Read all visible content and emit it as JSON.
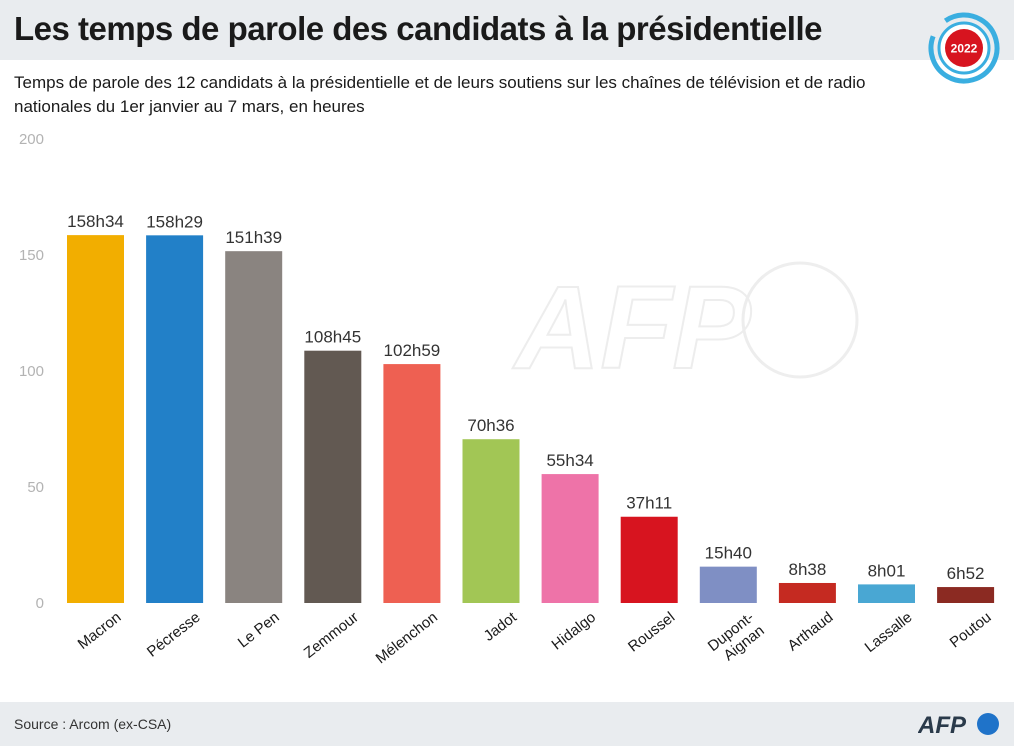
{
  "header": {
    "title": "Les temps de parole des candidats à la présidentielle",
    "badge_year": "2022",
    "subtitle": "Temps de parole des 12 candidats à la présidentielle et de leurs soutiens sur les chaînes de télévision et de radio nationales du 1er janvier au 7 mars, en heures"
  },
  "footer": {
    "source": "Source :  Arcom (ex-CSA)",
    "logo_text": "AFP"
  },
  "watermark": {
    "text": "AFP"
  },
  "chart_data": {
    "type": "bar",
    "title": "",
    "xlabel": "",
    "ylabel": "",
    "ylim": [
      0,
      200
    ],
    "yticks": [
      0,
      50,
      100,
      150,
      200
    ],
    "grid": false,
    "categories": [
      "Macron",
      "Pécresse",
      "Le Pen",
      "Zemmour",
      "Mélenchon",
      "Jadot",
      "Hidalgo",
      "Roussel",
      "Dupont-Aignan",
      "Arthaud",
      "Lassalle",
      "Poutou"
    ],
    "category_lines": [
      [
        "Macron"
      ],
      [
        "Pécresse"
      ],
      [
        "Le Pen"
      ],
      [
        "Zemmour"
      ],
      [
        "Mélenchon"
      ],
      [
        "Jadot"
      ],
      [
        "Hidalgo"
      ],
      [
        "Roussel"
      ],
      [
        "Dupont-",
        "Aignan"
      ],
      [
        "Arthaud"
      ],
      [
        "Lassalle"
      ],
      [
        "Poutou"
      ]
    ],
    "values": [
      158.57,
      158.48,
      151.65,
      108.75,
      102.98,
      70.6,
      55.57,
      37.18,
      15.67,
      8.63,
      8.02,
      6.87
    ],
    "labels": [
      "158h34",
      "158h29",
      "151h39",
      "108h45",
      "102h59",
      "70h36",
      "55h34",
      "37h11",
      "15h40",
      "8h38",
      "8h01",
      "6h52"
    ],
    "colors": [
      "#f2ae00",
      "#2280c8",
      "#8a8480",
      "#625952",
      "#ee6052",
      "#a2c655",
      "#ee73a8",
      "#d7141f",
      "#7f8fc4",
      "#c52a21",
      "#49a7d3",
      "#8b2a22"
    ]
  }
}
